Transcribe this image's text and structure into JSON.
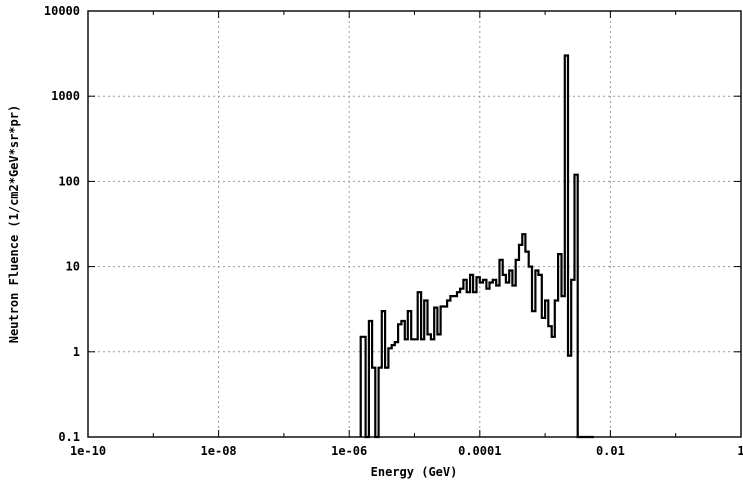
{
  "chart_data": {
    "type": "line",
    "title": "",
    "xlabel": "Energy (GeV)",
    "ylabel": "Neutron Fluence (1/cm2*GeV*sr*pr)",
    "xscale": "log",
    "yscale": "log",
    "xlim": [
      1e-10,
      1
    ],
    "ylim": [
      0.1,
      10000
    ],
    "grid": true,
    "legend": "none",
    "x_tick_labels": [
      "1e-10",
      "1e-08",
      "1e-06",
      "0.0001",
      "0.01",
      "1"
    ],
    "y_tick_labels": [
      "0.1",
      "1",
      "10",
      "100",
      "1000",
      "10000"
    ],
    "series": [
      {
        "style": "histogram step",
        "color": "#000000",
        "x": [
          1.5e-06,
          1.78e-06,
          2e-06,
          2.24e-06,
          2.51e-06,
          2.82e-06,
          3.16e-06,
          3.55e-06,
          3.98e-06,
          4.47e-06,
          5e-06,
          5.6e-06,
          6.3e-06,
          7.1e-06,
          7.9e-06,
          8.9e-06,
          1e-05,
          1.12e-05,
          1.26e-05,
          1.41e-05,
          1.58e-05,
          1.78e-05,
          2e-05,
          2.24e-05,
          2.51e-05,
          2.82e-05,
          3.16e-05,
          3.55e-05,
          3.98e-05,
          4.47e-05,
          5e-05,
          5.6e-05,
          6.3e-05,
          7.1e-05,
          7.9e-05,
          8.9e-05,
          0.0001,
          0.000112,
          0.000126,
          0.000141,
          0.000158,
          0.000178,
          0.0002,
          0.000224,
          0.000251,
          0.000282,
          0.000316,
          0.000355,
          0.000398,
          0.000447,
          0.0005,
          0.00056,
          0.00063,
          0.00071,
          0.00079,
          0.00089,
          0.001,
          0.00112,
          0.00126,
          0.00141,
          0.00158,
          0.00178,
          0.002,
          0.00224,
          0.00251,
          0.00282,
          0.00316,
          0.00355,
          0.00398,
          0.00447,
          0.005
        ],
        "y": [
          1.5,
          0.1,
          2.3,
          0.65,
          0.1,
          0.65,
          3.0,
          0.65,
          1.1,
          1.2,
          1.3,
          2.1,
          2.3,
          1.4,
          3.0,
          1.4,
          1.4,
          5.0,
          1.4,
          4.0,
          1.6,
          1.4,
          3.3,
          1.6,
          3.4,
          3.4,
          4.0,
          4.5,
          4.5,
          5.0,
          5.5,
          7.0,
          5.0,
          8.0,
          5.0,
          7.5,
          6.5,
          7.0,
          5.5,
          6.5,
          7.0,
          6.0,
          12.0,
          8.0,
          6.5,
          9.0,
          6.0,
          12.0,
          18.0,
          24.0,
          15.0,
          10.0,
          3.0,
          9.0,
          8.0,
          2.5,
          4.0,
          2.0,
          1.5,
          4.0,
          14.0,
          4.5,
          3000.0,
          0.9,
          7.0,
          120.0,
          0.1,
          0.1,
          0.1,
          0.1,
          0.1
        ]
      }
    ]
  }
}
